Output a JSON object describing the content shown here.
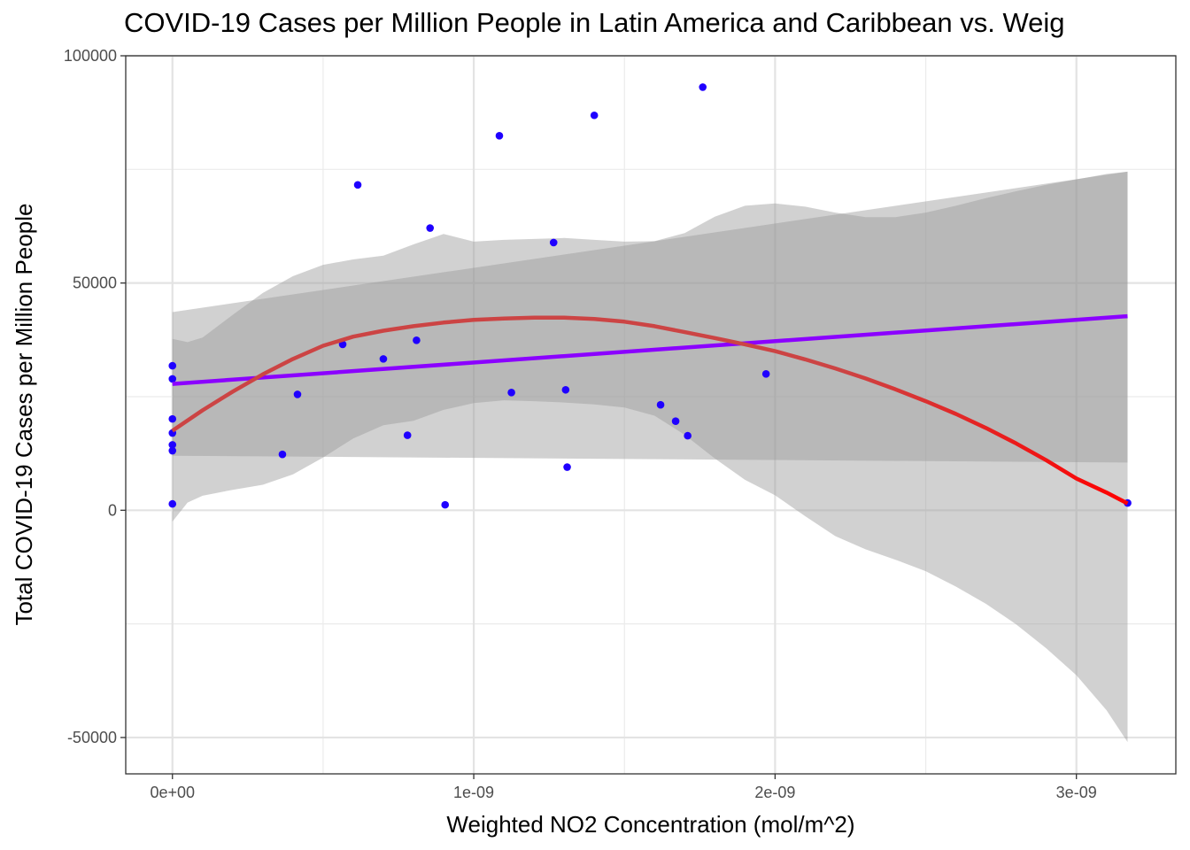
{
  "chart_data": {
    "type": "scatter",
    "title": "COVID-19 Cases per Million People in Latin America and Caribbean vs. Weig",
    "xlabel": "Weighted NO2 Concentration (mol/m^2)",
    "ylabel": "Total COVID-19 Cases per Million People",
    "xlim": [
      -1.55e-10,
      3.33e-09
    ],
    "ylim": [
      -58000,
      100000
    ],
    "x_ticks": [
      0,
      1e-09,
      2e-09,
      3e-09
    ],
    "x_tick_labels": [
      "0e+00",
      "1e-09",
      "2e-09",
      "3e-09"
    ],
    "y_ticks": [
      -50000,
      0,
      50000,
      100000
    ],
    "y_tick_labels": [
      "-50000",
      "0",
      "50000",
      "100000"
    ],
    "grid": true,
    "theme": "black-and-white",
    "point_color": "#1f00ff",
    "points": [
      {
        "x": 0.0,
        "y": 31800
      },
      {
        "x": 0.0,
        "y": 28900
      },
      {
        "x": 0.0,
        "y": 20100
      },
      {
        "x": 0.0,
        "y": 17000
      },
      {
        "x": 0.0,
        "y": 14400
      },
      {
        "x": 0.0,
        "y": 13100
      },
      {
        "x": 0.0,
        "y": 1400
      },
      {
        "x": 3.65e-10,
        "y": 12300
      },
      {
        "x": 4.15e-10,
        "y": 25500
      },
      {
        "x": 5.65e-10,
        "y": 36500
      },
      {
        "x": 6.15e-10,
        "y": 71600
      },
      {
        "x": 7e-10,
        "y": 33300
      },
      {
        "x": 7.8e-10,
        "y": 16500
      },
      {
        "x": 8.1e-10,
        "y": 37400
      },
      {
        "x": 8.55e-10,
        "y": 62100
      },
      {
        "x": 9.05e-10,
        "y": 1200
      },
      {
        "x": 1.085e-09,
        "y": 82400
      },
      {
        "x": 1.125e-09,
        "y": 25900
      },
      {
        "x": 1.265e-09,
        "y": 58900
      },
      {
        "x": 1.305e-09,
        "y": 26500
      },
      {
        "x": 1.31e-09,
        "y": 9500
      },
      {
        "x": 1.4e-09,
        "y": 86900
      },
      {
        "x": 1.62e-09,
        "y": 23200
      },
      {
        "x": 1.67e-09,
        "y": 19600
      },
      {
        "x": 1.71e-09,
        "y": 16400
      },
      {
        "x": 1.76e-09,
        "y": 93100
      },
      {
        "x": 1.97e-09,
        "y": 30000
      },
      {
        "x": 3.17e-09,
        "y": 1600
      }
    ],
    "series": [
      {
        "type": "linear-fit",
        "color": "#8b00ff",
        "band_color": "#999999",
        "band_opacity": 0.45,
        "line": [
          [
            0.0,
            27800
          ],
          [
            3.17e-09,
            42700
          ]
        ],
        "band_lower": [
          [
            0.0,
            12000
          ],
          [
            3.17e-09,
            10500
          ]
        ],
        "band_upper": [
          [
            0.0,
            43600
          ],
          [
            3.17e-09,
            74500
          ]
        ]
      },
      {
        "type": "loess-fit",
        "color_start": "#cc4444",
        "color_end": "#ff0000",
        "band_color": "#999999",
        "band_opacity": 0.45,
        "line": [
          [
            0.0,
            17500
          ],
          [
            1e-10,
            22000
          ],
          [
            2e-10,
            26100
          ],
          [
            3e-10,
            29900
          ],
          [
            4e-10,
            33300
          ],
          [
            5e-10,
            36200
          ],
          [
            6e-10,
            38200
          ],
          [
            7e-10,
            39500
          ],
          [
            8e-10,
            40500
          ],
          [
            9e-10,
            41300
          ],
          [
            1e-09,
            41900
          ],
          [
            1.1e-09,
            42200
          ],
          [
            1.2e-09,
            42400
          ],
          [
            1.3e-09,
            42400
          ],
          [
            1.4e-09,
            42100
          ],
          [
            1.5e-09,
            41500
          ],
          [
            1.6e-09,
            40500
          ],
          [
            1.7e-09,
            39200
          ],
          [
            1.8e-09,
            37900
          ],
          [
            1.9e-09,
            36500
          ],
          [
            2e-09,
            35000
          ],
          [
            2.1e-09,
            33200
          ],
          [
            2.2e-09,
            31200
          ],
          [
            2.3e-09,
            29000
          ],
          [
            2.4e-09,
            26600
          ],
          [
            2.5e-09,
            24000
          ],
          [
            2.6e-09,
            21200
          ],
          [
            2.7e-09,
            18100
          ],
          [
            2.8e-09,
            14700
          ],
          [
            2.9e-09,
            11000
          ],
          [
            3e-09,
            7000
          ],
          [
            3.1e-09,
            3900
          ],
          [
            3.17e-09,
            1500
          ]
        ],
        "band_upper": [
          [
            0.0,
            37700
          ],
          [
            5e-11,
            37000
          ],
          [
            1e-10,
            38000
          ],
          [
            2e-10,
            43000
          ],
          [
            3e-10,
            47800
          ],
          [
            4e-10,
            51500
          ],
          [
            5e-10,
            54000
          ],
          [
            6e-10,
            55200
          ],
          [
            7e-10,
            56000
          ],
          [
            8e-10,
            58500
          ],
          [
            9e-10,
            60800
          ],
          [
            1e-09,
            59100
          ],
          [
            1.1e-09,
            59500
          ],
          [
            1.2e-09,
            59700
          ],
          [
            1.3e-09,
            59900
          ],
          [
            1.4e-09,
            59500
          ],
          [
            1.5e-09,
            59100
          ],
          [
            1.6e-09,
            59200
          ],
          [
            1.7e-09,
            61000
          ],
          [
            1.8e-09,
            64600
          ],
          [
            1.9e-09,
            67000
          ],
          [
            2e-09,
            67500
          ],
          [
            2.1e-09,
            66800
          ],
          [
            2.2e-09,
            65500
          ],
          [
            2.3e-09,
            64500
          ],
          [
            2.4e-09,
            64500
          ],
          [
            2.5e-09,
            65500
          ],
          [
            2.6e-09,
            67000
          ],
          [
            2.7e-09,
            68700
          ],
          [
            2.8e-09,
            70200
          ],
          [
            2.9e-09,
            71600
          ],
          [
            3e-09,
            72800
          ],
          [
            3.1e-09,
            74000
          ],
          [
            3.17e-09,
            74500
          ]
        ],
        "band_lower": [
          [
            0.0,
            -2500
          ],
          [
            5e-11,
            1700
          ],
          [
            1e-10,
            3200
          ],
          [
            2e-10,
            4500
          ],
          [
            3e-10,
            5600
          ],
          [
            4e-10,
            7900
          ],
          [
            5e-10,
            11600
          ],
          [
            6e-10,
            15800
          ],
          [
            7e-10,
            18700
          ],
          [
            8e-10,
            19700
          ],
          [
            9e-10,
            22100
          ],
          [
            1e-09,
            23600
          ],
          [
            1.1e-09,
            24200
          ],
          [
            1.2e-09,
            24000
          ],
          [
            1.3e-09,
            23700
          ],
          [
            1.4e-09,
            23300
          ],
          [
            1.5e-09,
            22600
          ],
          [
            1.6e-09,
            20800
          ],
          [
            1.7e-09,
            16600
          ],
          [
            1.8e-09,
            11400
          ],
          [
            1.9e-09,
            6700
          ],
          [
            2e-09,
            3300
          ],
          [
            2.1e-09,
            -1300
          ],
          [
            2.2e-09,
            -5700
          ],
          [
            2.3e-09,
            -8600
          ],
          [
            2.4e-09,
            -10900
          ],
          [
            2.5e-09,
            -13400
          ],
          [
            2.6e-09,
            -16800
          ],
          [
            2.7e-09,
            -20600
          ],
          [
            2.8e-09,
            -25100
          ],
          [
            2.9e-09,
            -30400
          ],
          [
            3e-09,
            -36300
          ],
          [
            3.1e-09,
            -44000
          ],
          [
            3.17e-09,
            -51000
          ]
        ]
      }
    ]
  }
}
